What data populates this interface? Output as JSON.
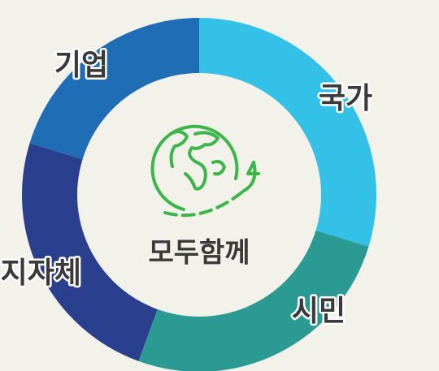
{
  "center": {
    "label": "모두함께"
  },
  "segments": [
    {
      "label": "국가"
    },
    {
      "label": "시민"
    },
    {
      "label": "지자체"
    },
    {
      "label": "기업"
    }
  ]
}
